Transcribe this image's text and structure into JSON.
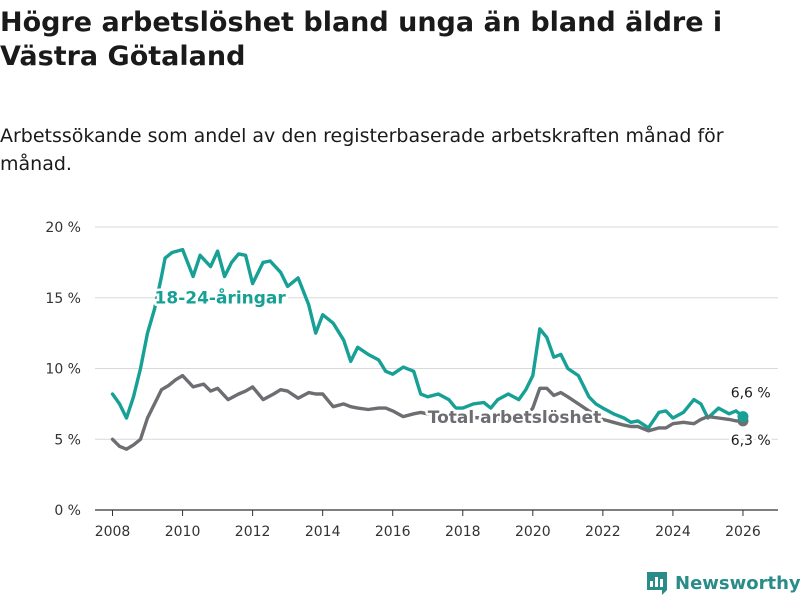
{
  "chart_data": {
    "type": "line",
    "title": "Högre arbetslöshet bland unga än bland äldre i Västra Götaland",
    "subtitle": "Arbetssökande som andel av den registerbaserade arbetskraften månad för månad.",
    "xlabel": "",
    "ylabel": "",
    "xlim": [
      2007.5,
      2027.0
    ],
    "ylim": [
      0,
      20
    ],
    "y_ticks": [
      0,
      5,
      10,
      15,
      20
    ],
    "y_tick_labels": [
      "0 %",
      "5 %",
      "10 %",
      "15 %",
      "20 %"
    ],
    "x_ticks": [
      2008,
      2010,
      2012,
      2014,
      2016,
      2018,
      2020,
      2022,
      2024,
      2026
    ],
    "x_tick_labels": [
      "2008",
      "2010",
      "2012",
      "2014",
      "2016",
      "2018",
      "2020",
      "2022",
      "2024",
      "2026"
    ],
    "grid": true,
    "series": [
      {
        "name": "18-24-åringar",
        "color": "#16a096",
        "x": [
          2008.0,
          2008.2,
          2008.4,
          2008.6,
          2008.8,
          2009.0,
          2009.2,
          2009.4,
          2009.5,
          2009.7,
          2010.0,
          2010.3,
          2010.5,
          2010.8,
          2011.0,
          2011.2,
          2011.4,
          2011.6,
          2011.8,
          2012.0,
          2012.3,
          2012.5,
          2012.8,
          2013.0,
          2013.3,
          2013.6,
          2013.8,
          2014.0,
          2014.3,
          2014.6,
          2014.8,
          2015.0,
          2015.3,
          2015.6,
          2015.8,
          2016.0,
          2016.3,
          2016.6,
          2016.8,
          2017.0,
          2017.3,
          2017.6,
          2017.8,
          2018.0,
          2018.3,
          2018.6,
          2018.8,
          2019.0,
          2019.3,
          2019.6,
          2019.8,
          2020.0,
          2020.2,
          2020.4,
          2020.6,
          2020.8,
          2021.0,
          2021.3,
          2021.6,
          2021.8,
          2022.0,
          2022.3,
          2022.6,
          2022.8,
          2023.0,
          2023.3,
          2023.6,
          2023.8,
          2024.0,
          2024.3,
          2024.6,
          2024.8,
          2025.0,
          2025.3,
          2025.6,
          2025.8,
          2026.0
        ],
        "values": [
          8.2,
          7.5,
          6.5,
          8.0,
          10.0,
          12.5,
          14.2,
          16.5,
          17.8,
          18.2,
          18.4,
          16.5,
          18.0,
          17.2,
          18.3,
          16.5,
          17.5,
          18.1,
          18.0,
          16.0,
          17.5,
          17.6,
          16.8,
          15.8,
          16.4,
          14.5,
          12.5,
          13.8,
          13.2,
          12.0,
          10.5,
          11.5,
          11.0,
          10.6,
          9.8,
          9.6,
          10.1,
          9.8,
          8.2,
          8.0,
          8.2,
          7.8,
          7.2,
          7.2,
          7.5,
          7.6,
          7.2,
          7.8,
          8.2,
          7.8,
          8.5,
          9.5,
          12.8,
          12.2,
          10.8,
          11.0,
          10.0,
          9.5,
          8.0,
          7.5,
          7.2,
          6.8,
          6.5,
          6.2,
          6.3,
          5.8,
          6.9,
          7.0,
          6.5,
          6.9,
          7.8,
          7.5,
          6.5,
          7.2,
          6.8,
          7.0,
          6.6
        ]
      },
      {
        "name": "Total arbetslöshet",
        "color": "#6d6e72",
        "x": [
          2008.0,
          2008.2,
          2008.4,
          2008.6,
          2008.8,
          2009.0,
          2009.2,
          2009.4,
          2009.6,
          2009.8,
          2010.0,
          2010.3,
          2010.6,
          2010.8,
          2011.0,
          2011.3,
          2011.6,
          2011.8,
          2012.0,
          2012.3,
          2012.6,
          2012.8,
          2013.0,
          2013.3,
          2013.6,
          2013.8,
          2014.0,
          2014.3,
          2014.6,
          2014.8,
          2015.0,
          2015.3,
          2015.6,
          2015.8,
          2016.0,
          2016.3,
          2016.6,
          2016.8,
          2017.0,
          2017.5,
          2018.0,
          2018.5,
          2019.0,
          2019.3,
          2019.6,
          2019.8,
          2020.0,
          2020.2,
          2020.4,
          2020.6,
          2020.8,
          2021.0,
          2021.3,
          2021.6,
          2021.8,
          2022.0,
          2022.3,
          2022.6,
          2022.8,
          2023.0,
          2023.3,
          2023.6,
          2023.8,
          2024.0,
          2024.3,
          2024.6,
          2024.8,
          2025.0,
          2025.3,
          2025.6,
          2025.8,
          2026.0
        ],
        "values": [
          5.0,
          4.5,
          4.3,
          4.6,
          5.0,
          6.5,
          7.5,
          8.5,
          8.8,
          9.2,
          9.5,
          8.7,
          8.9,
          8.4,
          8.6,
          7.8,
          8.2,
          8.4,
          8.7,
          7.8,
          8.2,
          8.5,
          8.4,
          7.9,
          8.3,
          8.2,
          8.2,
          7.3,
          7.5,
          7.3,
          7.2,
          7.1,
          7.2,
          7.2,
          7.0,
          6.6,
          6.8,
          6.9,
          6.8,
          6.7,
          6.6,
          6.5,
          6.4,
          6.3,
          6.4,
          6.6,
          7.2,
          8.6,
          8.6,
          8.1,
          8.3,
          8.0,
          7.5,
          7.0,
          6.7,
          6.4,
          6.2,
          6.0,
          5.9,
          5.9,
          5.6,
          5.8,
          5.8,
          6.1,
          6.2,
          6.1,
          6.4,
          6.6,
          6.5,
          6.4,
          6.3,
          6.3
        ]
      }
    ],
    "annotations": {
      "series_label_young": "18-24-åringar",
      "series_label_total": "Total arbetslöshet",
      "end_label_young": "6,6 %",
      "end_label_total": "6,3 %"
    }
  },
  "brand": {
    "name": "Newsworthy",
    "color": "#2a8c89"
  }
}
